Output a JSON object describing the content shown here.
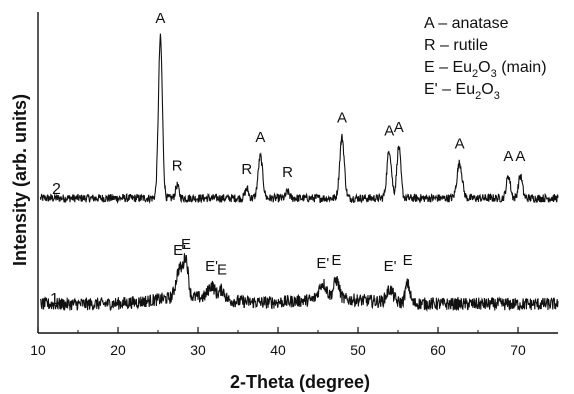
{
  "chart_data": {
    "type": "line",
    "xlabel": "2-Theta (degree)",
    "ylabel": "Intensity (arb. units)",
    "xlim": [
      10,
      75
    ],
    "ylim": [
      0,
      100
    ],
    "x_ticks": [
      10,
      20,
      30,
      40,
      50,
      60,
      70
    ],
    "grid": false,
    "legend_position": "top-right",
    "legend": [
      {
        "key": "A",
        "sep": " – ",
        "text": "anatase"
      },
      {
        "key": "R",
        "sep": " – ",
        "text": "rutile"
      },
      {
        "key": "E",
        "sep": " – ",
        "text": "Eu",
        "sub": "2",
        "text2": "O",
        "sub2": "3",
        "suffix": " (main)"
      },
      {
        "key": "E'",
        "sep": " – ",
        "text": "Eu",
        "sub": "2",
        "text2": "O",
        "sub2": "3",
        "suffix": ""
      }
    ],
    "series": [
      {
        "name": "2",
        "baseline": 42,
        "noise": 1.3,
        "peaks": [
          {
            "x": 25.3,
            "height": 50,
            "width": 0.35,
            "label": "A"
          },
          {
            "x": 27.4,
            "height": 4,
            "width": 0.3,
            "label": "R"
          },
          {
            "x": 36.1,
            "height": 3,
            "width": 0.3,
            "label": "R"
          },
          {
            "x": 37.8,
            "height": 13,
            "width": 0.4,
            "label": "A"
          },
          {
            "x": 41.2,
            "height": 2,
            "width": 0.3,
            "label": "R"
          },
          {
            "x": 48.0,
            "height": 19,
            "width": 0.4,
            "label": "A"
          },
          {
            "x": 53.9,
            "height": 15,
            "width": 0.4,
            "label": "A"
          },
          {
            "x": 55.1,
            "height": 16,
            "width": 0.35,
            "label": "A"
          },
          {
            "x": 62.7,
            "height": 11,
            "width": 0.45,
            "label": "A"
          },
          {
            "x": 68.8,
            "height": 7,
            "width": 0.35,
            "label": "A"
          },
          {
            "x": 70.3,
            "height": 7,
            "width": 0.35,
            "label": "A"
          }
        ]
      },
      {
        "name": "1",
        "baseline": 9,
        "noise": 2.0,
        "peaks": [
          {
            "x": 27.7,
            "height": 9,
            "width": 0.6,
            "label": "E'"
          },
          {
            "x": 28.5,
            "height": 11,
            "width": 0.4,
            "label": "E"
          },
          {
            "x": 31.7,
            "height": 4,
            "width": 0.6,
            "label": "E'"
          },
          {
            "x": 33.0,
            "height": 3,
            "width": 0.5,
            "label": "E"
          },
          {
            "x": 45.6,
            "height": 5,
            "width": 0.7,
            "label": "E'"
          },
          {
            "x": 47.3,
            "height": 6,
            "width": 0.5,
            "label": "E"
          },
          {
            "x": 54.0,
            "height": 4,
            "width": 0.6,
            "label": "E'"
          },
          {
            "x": 56.2,
            "height": 6,
            "width": 0.4,
            "label": "E"
          }
        ]
      }
    ]
  }
}
